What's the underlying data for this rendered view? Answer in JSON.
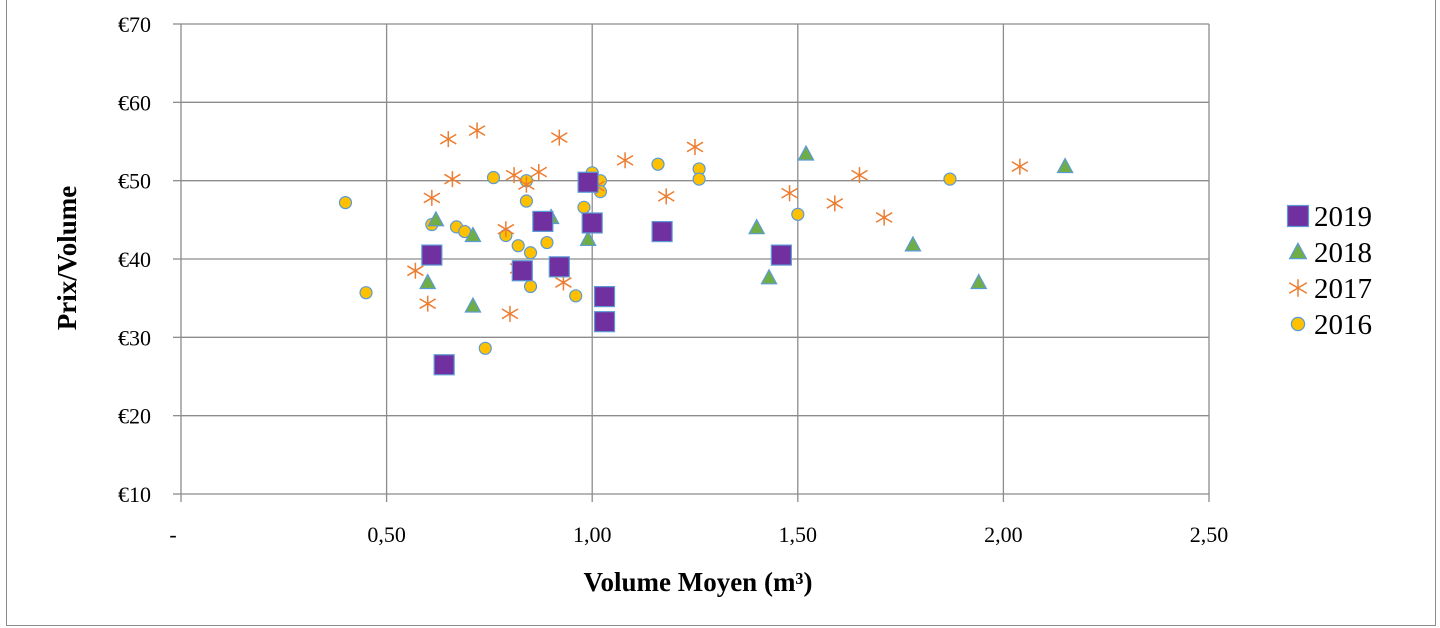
{
  "chart_data": {
    "type": "scatter",
    "title": "",
    "xlabel": "Volume Moyen (m³)",
    "ylabel": "Prix/Volume",
    "xlim": [
      0,
      2.5
    ],
    "ylim": [
      10,
      70
    ],
    "x_ticks": [
      0,
      0.5,
      1.0,
      1.5,
      2.0,
      2.5
    ],
    "x_tick_labels": [
      "-",
      "0,50",
      "1,00",
      "1,50",
      "2,00",
      "2,50"
    ],
    "y_ticks": [
      10,
      20,
      30,
      40,
      50,
      60,
      70
    ],
    "y_tick_labels": [
      "€10",
      "€20",
      "€30",
      "€40",
      "€50",
      "€60",
      "€70"
    ],
    "grid": true,
    "legend_position": "right",
    "series": [
      {
        "name": "2019",
        "marker": "square",
        "color": "#7030a0",
        "stroke": "#5b9bd5",
        "points": [
          [
            0.61,
            40.5
          ],
          [
            0.64,
            26.5
          ],
          [
            0.83,
            38.5
          ],
          [
            0.88,
            44.8
          ],
          [
            0.92,
            39.0
          ],
          [
            0.99,
            49.8
          ],
          [
            1.0,
            44.6
          ],
          [
            1.03,
            35.2
          ],
          [
            1.03,
            32.0
          ],
          [
            1.17,
            43.5
          ],
          [
            1.46,
            40.5
          ]
        ]
      },
      {
        "name": "2018",
        "marker": "triangle",
        "color": "#70ad47",
        "stroke": "#5b9bd5",
        "points": [
          [
            0.6,
            37.0
          ],
          [
            0.61,
            40.5
          ],
          [
            0.62,
            45.0
          ],
          [
            0.71,
            43.0
          ],
          [
            0.71,
            34.0
          ],
          [
            0.9,
            45.3
          ],
          [
            0.99,
            42.5
          ],
          [
            1.4,
            44.0
          ],
          [
            1.43,
            37.6
          ],
          [
            1.52,
            53.4
          ],
          [
            1.78,
            41.8
          ],
          [
            1.94,
            37.0
          ],
          [
            2.15,
            51.8
          ]
        ]
      },
      {
        "name": "2017",
        "marker": "star",
        "color": "#ed7d31",
        "points": [
          [
            0.57,
            38.5
          ],
          [
            0.6,
            34.3
          ],
          [
            0.61,
            47.8
          ],
          [
            0.65,
            55.3
          ],
          [
            0.66,
            50.2
          ],
          [
            0.72,
            56.4
          ],
          [
            0.79,
            43.8
          ],
          [
            0.8,
            33.0
          ],
          [
            0.81,
            50.7
          ],
          [
            0.82,
            38.8
          ],
          [
            0.84,
            49.5
          ],
          [
            0.87,
            51.1
          ],
          [
            0.92,
            55.5
          ],
          [
            0.93,
            37.0
          ],
          [
            1.01,
            49.3
          ],
          [
            1.08,
            52.6
          ],
          [
            1.18,
            48.0
          ],
          [
            1.25,
            54.3
          ],
          [
            1.48,
            48.4
          ],
          [
            1.59,
            47.1
          ],
          [
            1.65,
            50.7
          ],
          [
            1.71,
            45.3
          ],
          [
            2.04,
            51.8
          ]
        ]
      },
      {
        "name": "2016",
        "marker": "circle",
        "color": "#ffc000",
        "stroke": "#5b9bd5",
        "points": [
          [
            0.4,
            47.2
          ],
          [
            0.45,
            35.7
          ],
          [
            0.61,
            44.4
          ],
          [
            0.62,
            40.7
          ],
          [
            0.67,
            44.1
          ],
          [
            0.69,
            43.5
          ],
          [
            0.74,
            28.6
          ],
          [
            0.76,
            50.4
          ],
          [
            0.79,
            43.0
          ],
          [
            0.82,
            41.7
          ],
          [
            0.84,
            50.0
          ],
          [
            0.84,
            47.4
          ],
          [
            0.85,
            40.8
          ],
          [
            0.85,
            36.5
          ],
          [
            0.89,
            42.1
          ],
          [
            0.96,
            35.3
          ],
          [
            0.98,
            46.6
          ],
          [
            1.0,
            51.0
          ],
          [
            1.02,
            50.0
          ],
          [
            1.02,
            48.6
          ],
          [
            1.16,
            52.1
          ],
          [
            1.26,
            51.5
          ],
          [
            1.26,
            50.2
          ],
          [
            1.5,
            45.7
          ],
          [
            1.87,
            50.2
          ]
        ]
      }
    ]
  }
}
